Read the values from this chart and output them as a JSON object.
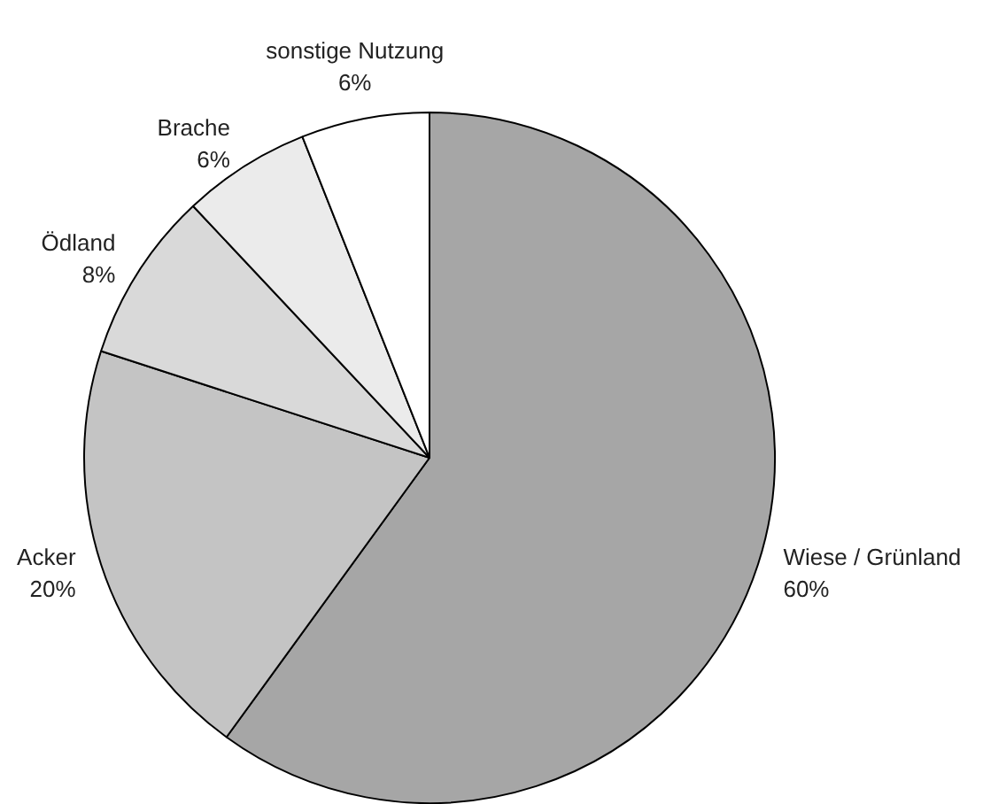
{
  "chart_data": {
    "type": "pie",
    "categories": [
      "Wiese / Grünland",
      "Acker",
      "Ödland",
      "Brache",
      "sonstige Nutzung"
    ],
    "values": [
      60,
      20,
      8,
      6,
      6
    ],
    "value_labels": [
      "60%",
      "20%",
      "8%",
      "6%",
      "6%"
    ],
    "colors": [
      "#a6a6a6",
      "#c4c4c4",
      "#d9d9d9",
      "#ebebeb",
      "#ffffff"
    ]
  }
}
